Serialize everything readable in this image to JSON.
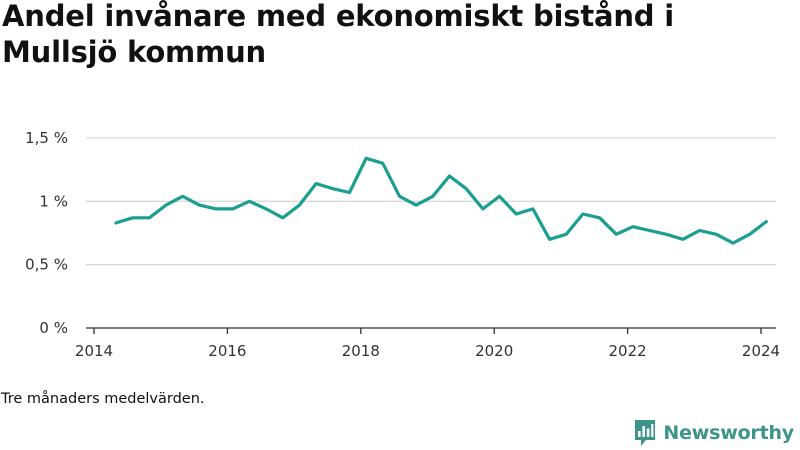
{
  "title": "Andel invånare med ekonomiskt bistånd i Mullsjö kommun",
  "footnote": "Tre månaders medelvärden.",
  "brand": "Newsworthy",
  "colors": {
    "line": "#1a9e90",
    "grid": "#d9d9d9",
    "axis": "#333333",
    "brand": "#3d9488"
  },
  "chart_data": {
    "type": "line",
    "title": "Andel invånare med ekonomiskt bistånd i Mullsjö kommun",
    "xlabel": "",
    "ylabel": "",
    "xlim": [
      2014.0,
      2024.6
    ],
    "ylim": [
      0,
      1.5
    ],
    "x_ticks": [
      2014,
      2016,
      2018,
      2020,
      2022,
      2024
    ],
    "x_tick_labels": [
      "2014",
      "2016",
      "2018",
      "2020",
      "2022",
      "2024"
    ],
    "y_ticks": [
      0,
      0.5,
      1,
      1.5
    ],
    "y_tick_labels": [
      "0 %",
      "0,5 %",
      "1 %",
      "1,5 %"
    ],
    "grid": "horizontal",
    "series": [
      {
        "x": [
          2014.33,
          2014.58,
          2014.83,
          2015.08,
          2015.33,
          2015.58,
          2015.83,
          2016.08,
          2016.33,
          2016.58,
          2016.83,
          2017.08,
          2017.33,
          2017.58,
          2017.83,
          2018.08,
          2018.33,
          2018.58,
          2018.83,
          2019.08,
          2019.33,
          2019.58,
          2019.83,
          2020.08,
          2020.33,
          2020.58,
          2020.83,
          2021.08,
          2021.33,
          2021.58,
          2021.83,
          2022.08,
          2022.33,
          2022.58,
          2022.83,
          2023.08,
          2023.33,
          2023.58,
          2023.83,
          2024.08
        ],
        "values": [
          0.83,
          0.87,
          0.87,
          0.97,
          1.04,
          0.97,
          0.94,
          0.94,
          1.0,
          0.94,
          0.87,
          0.97,
          1.14,
          1.1,
          1.07,
          1.34,
          1.3,
          1.04,
          0.97,
          1.04,
          1.2,
          1.1,
          0.94,
          1.04,
          0.9,
          0.94,
          0.7,
          0.74,
          0.9,
          0.87,
          0.74,
          0.8,
          0.77,
          0.74,
          0.7,
          0.77,
          0.74,
          0.67,
          0.74,
          0.84
        ]
      }
    ]
  }
}
